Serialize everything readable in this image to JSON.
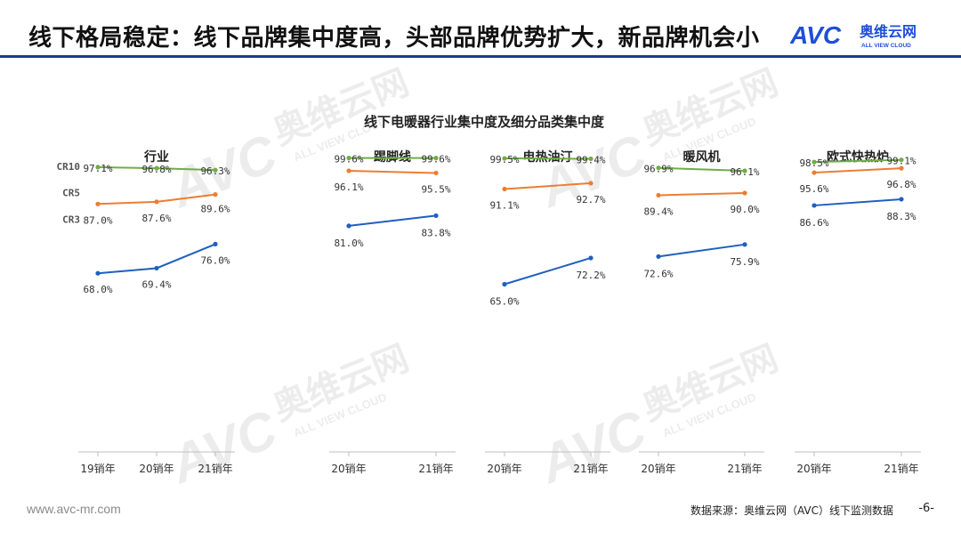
{
  "slide_title": "线下格局稳定：线下品牌集中度高，头部品牌优势扩大，新品牌机会小",
  "logo": {
    "brand": "奥维云网",
    "tagline": "ALL VIEW CLOUD",
    "mark": "AVC"
  },
  "watermark": {
    "text_cn": "奥维云网",
    "text_en": "ALL VIEW CLOUD",
    "mark": "AVC"
  },
  "footer": {
    "url": "www.avc-mr.com",
    "source": "数据来源：奥维云网（AVC）线下监测数据",
    "page": "-6-"
  },
  "colors": {
    "cr10": "#70ad47",
    "cr5": "#ed7d31",
    "cr3": "#1f5fbf",
    "header_rule": "#1e3a8a",
    "brand_blue": "#1f4fd8",
    "brand_orange": "#f08a24"
  },
  "chart_data": {
    "type": "line",
    "title": "线下电暖器行业集中度及细分品类集中度",
    "series_labels": [
      "CR10",
      "CR5",
      "CR3"
    ],
    "ylim": [
      60,
      100
    ],
    "grid": false,
    "panels": [
      {
        "name": "行业",
        "x": [
          "19销年",
          "20销年",
          "21销年"
        ],
        "series": [
          {
            "name": "CR10",
            "values": [
              97.1,
              96.8,
              96.3
            ],
            "labels": [
              "97.1%",
              "96.8%",
              "96.3%"
            ]
          },
          {
            "name": "CR5",
            "values": [
              87.0,
              87.6,
              89.6
            ],
            "labels": [
              "87.0%",
              "87.6%",
              "89.6%"
            ]
          },
          {
            "name": "CR3",
            "values": [
              68.0,
              69.4,
              76.0
            ],
            "labels": [
              "68.0%",
              "69.4%",
              "76.0%"
            ]
          }
        ]
      },
      {
        "name": "踢脚线",
        "x": [
          "20销年",
          "21销年"
        ],
        "series": [
          {
            "name": "CR10",
            "values": [
              99.6,
              99.6
            ],
            "labels": [
              "99.6%",
              "99.6%"
            ]
          },
          {
            "name": "CR5",
            "values": [
              96.1,
              95.5
            ],
            "labels": [
              "96.1%",
              "95.5%"
            ]
          },
          {
            "name": "CR3",
            "values": [
              81.0,
              83.8
            ],
            "labels": [
              "81.0%",
              "83.8%"
            ]
          }
        ]
      },
      {
        "name": "电热油汀",
        "x": [
          "20销年",
          "21销年"
        ],
        "series": [
          {
            "name": "CR10",
            "values": [
              99.5,
              99.4
            ],
            "labels": [
              "99.5%",
              "99.4%"
            ]
          },
          {
            "name": "CR5",
            "values": [
              91.1,
              92.7
            ],
            "labels": [
              "91.1%",
              "92.7%"
            ]
          },
          {
            "name": "CR3",
            "values": [
              65.0,
              72.2
            ],
            "labels": [
              "65.0%",
              "72.2%"
            ]
          }
        ]
      },
      {
        "name": "暖风机",
        "x": [
          "20销年",
          "21销年"
        ],
        "series": [
          {
            "name": "CR10",
            "values": [
              96.9,
              96.1
            ],
            "labels": [
              "96.9%",
              "96.1%"
            ]
          },
          {
            "name": "CR5",
            "values": [
              89.4,
              90.0
            ],
            "labels": [
              "89.4%",
              "90.0%"
            ]
          },
          {
            "name": "CR3",
            "values": [
              72.6,
              75.9
            ],
            "labels": [
              "72.6%",
              "75.9%"
            ]
          }
        ]
      },
      {
        "name": "欧式快热炉",
        "x": [
          "20销年",
          "21销年"
        ],
        "series": [
          {
            "name": "CR10",
            "values": [
              98.5,
              99.1
            ],
            "labels": [
              "98.5%",
              "99.1%"
            ]
          },
          {
            "name": "CR5",
            "values": [
              95.6,
              96.8
            ],
            "labels": [
              "95.6%",
              "96.8%"
            ]
          },
          {
            "name": "CR3",
            "values": [
              86.6,
              88.3
            ],
            "labels": [
              "86.6%",
              "88.3%"
            ]
          }
        ]
      }
    ]
  }
}
